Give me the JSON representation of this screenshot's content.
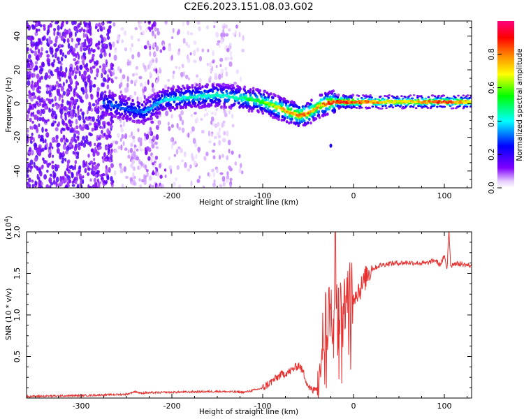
{
  "title": "C2E6.2023.151.08.03.G02",
  "colors": {
    "snr_line": "#e8302f",
    "axis": "#000000",
    "spectrogram_scatter": "#7a00e6",
    "spectrogram_core": "#00d0d0",
    "spectrogram_peak": "#ff0030"
  },
  "chart_data": [
    {
      "type": "heatmap",
      "xlabel": "Height of straight line (km)",
      "ylabel": "Frequency (Hz)",
      "xlim": [
        -360,
        130
      ],
      "ylim": [
        -50,
        49
      ],
      "x_ticks": [
        -300,
        -200,
        -100,
        0,
        100
      ],
      "x_tick_labels": [
        "-300",
        "-200",
        "-100",
        "0",
        "100"
      ],
      "y_ticks": [
        -40,
        -20,
        0,
        20,
        40
      ],
      "y_tick_labels": [
        "-40",
        "-20",
        "0",
        "20",
        "40"
      ],
      "colorbar": {
        "label": "Normalized spectral amplitude",
        "range": [
          0,
          1
        ],
        "ticks": [
          0.0,
          0.2,
          0.4,
          0.6,
          0.8
        ],
        "tick_labels": [
          "0.0",
          "0.2",
          "0.4",
          "0.6",
          "0.8"
        ],
        "colors": [
          "#ffffff",
          "#8000ff",
          "#0000ff",
          "#00ffff",
          "#00ff00",
          "#ffff00",
          "#ff8000",
          "#ff0000",
          "#ff0080"
        ]
      },
      "ridge": {
        "x": [
          -270,
          -250,
          -230,
          -210,
          -180,
          -150,
          -120,
          -100,
          -80,
          -60,
          -50,
          -40,
          -30,
          -20,
          0,
          50,
          100,
          130
        ],
        "freq": [
          0,
          -3,
          -5,
          2,
          4,
          5,
          3,
          1,
          -3,
          -7,
          -6,
          -2,
          0,
          1,
          1,
          1,
          1,
          1
        ],
        "amplitude": [
          0.35,
          0.3,
          0.35,
          0.4,
          0.45,
          0.45,
          0.5,
          0.6,
          0.75,
          0.85,
          0.8,
          0.75,
          0.85,
          0.9,
          0.9,
          0.7,
          0.9,
          0.7
        ]
      }
    },
    {
      "type": "line",
      "xlabel": "Height of straight line (km)",
      "ylabel": "SNR (10 * v/v)",
      "y_multiplier": "(x10^4)",
      "y_multiplier_base": "(x10",
      "y_multiplier_exp": "4",
      "y_multiplier_close": ")",
      "xlim": [
        -360,
        130
      ],
      "ylim": [
        0,
        20000
      ],
      "x_ticks": [
        -300,
        -200,
        -100,
        0,
        100
      ],
      "x_tick_labels": [
        "-300",
        "-200",
        "-100",
        "0",
        "100"
      ],
      "y_ticks": [
        5000,
        10000,
        15000,
        20000
      ],
      "y_tick_labels": [
        "0.5",
        "1.0",
        "1.5",
        "2.0"
      ],
      "series": [
        {
          "x": [
            -360,
            -300,
            -250,
            -240,
            -235,
            -200,
            -150,
            -120,
            -100,
            -90,
            -80,
            -70,
            -65,
            -60,
            -55,
            -50,
            -45,
            -40,
            -35,
            -30,
            -28,
            -25,
            -22,
            -20,
            -18,
            -15,
            -12,
            -10,
            -5,
            0,
            5,
            10,
            15,
            20,
            30,
            40,
            60,
            80,
            90,
            95,
            100,
            103,
            105,
            107,
            110,
            120,
            130
          ],
          "y": [
            200,
            300,
            450,
            800,
            600,
            700,
            800,
            700,
            1200,
            2000,
            2800,
            3200,
            3600,
            4000,
            3000,
            1500,
            800,
            1500,
            6500,
            11000,
            9000,
            13500,
            8000,
            20000,
            9000,
            12000,
            10000,
            11000,
            13500,
            12500,
            13000,
            13500,
            15000,
            15500,
            16000,
            16200,
            16300,
            16200,
            16600,
            16000,
            17000,
            15500,
            20500,
            15800,
            16200,
            16100,
            15900
          ]
        }
      ]
    }
  ]
}
